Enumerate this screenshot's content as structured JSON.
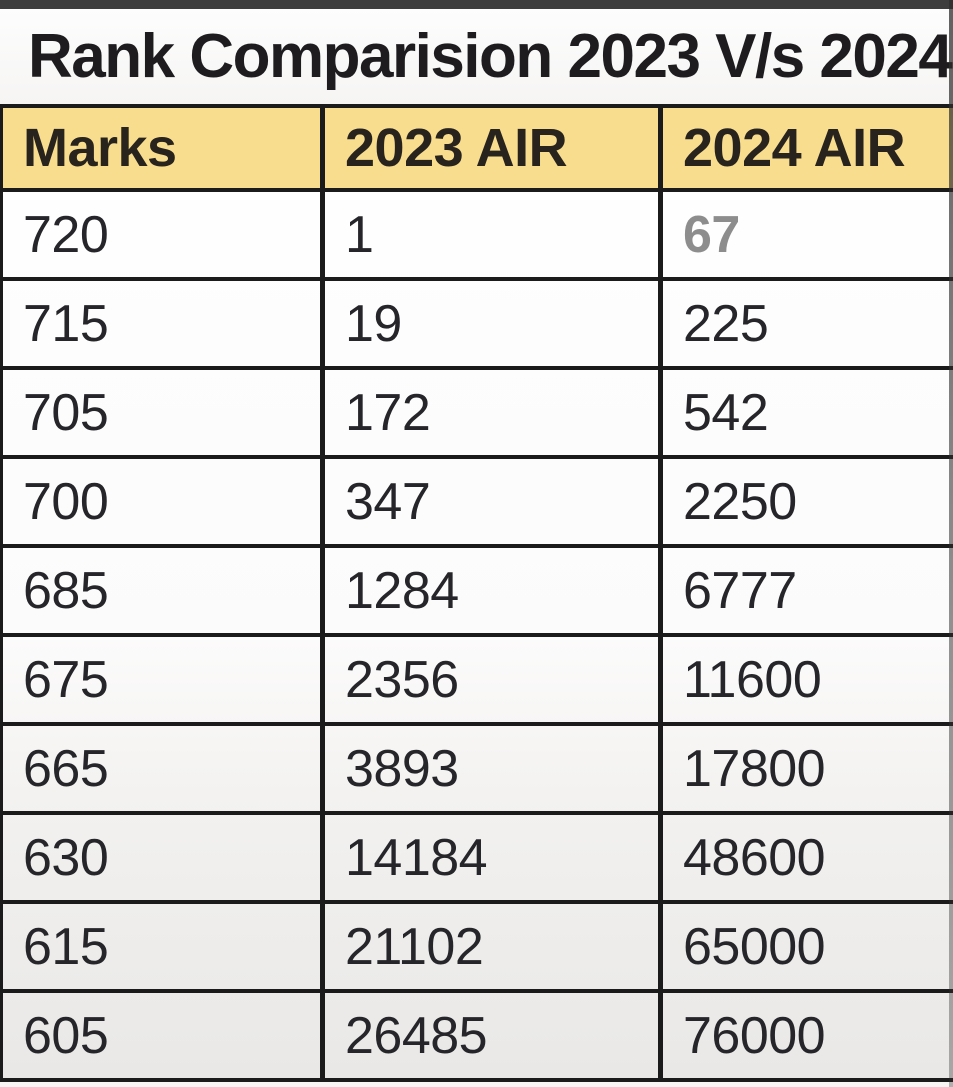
{
  "title": "Rank Comparision 2023 V/s 2024",
  "chart_data": {
    "type": "table",
    "title": "Rank Comparision 2023 V/s 2024",
    "columns": [
      "Marks",
      "2023 AIR",
      "2024 AIR"
    ],
    "rows": [
      [
        720,
        1,
        67
      ],
      [
        715,
        19,
        225
      ],
      [
        705,
        172,
        542
      ],
      [
        700,
        347,
        2250
      ],
      [
        685,
        1284,
        6777
      ],
      [
        675,
        2356,
        11600
      ],
      [
        665,
        3893,
        17800
      ],
      [
        630,
        14184,
        48600
      ],
      [
        615,
        21102,
        65000
      ],
      [
        605,
        26485,
        76000
      ]
    ]
  },
  "table": {
    "headers": [
      "Marks",
      "2023 AIR",
      "2024 AIR"
    ],
    "rows": [
      {
        "marks": "720",
        "air_2023": "1",
        "air_2024": "67",
        "air_2024_muted": true
      },
      {
        "marks": "715",
        "air_2023": "19",
        "air_2024": "225",
        "air_2024_muted": false
      },
      {
        "marks": "705",
        "air_2023": "172",
        "air_2024": "542",
        "air_2024_muted": false
      },
      {
        "marks": "700",
        "air_2023": "347",
        "air_2024": "2250",
        "air_2024_muted": false
      },
      {
        "marks": "685",
        "air_2023": "1284",
        "air_2024": "6777",
        "air_2024_muted": false
      },
      {
        "marks": "675",
        "air_2023": "2356",
        "air_2024": "11600",
        "air_2024_muted": false
      },
      {
        "marks": "665",
        "air_2023": "3893",
        "air_2024": "17800",
        "air_2024_muted": false
      },
      {
        "marks": "630",
        "air_2023": "14184",
        "air_2024": "48600",
        "air_2024_muted": false
      },
      {
        "marks": "615",
        "air_2023": "21102",
        "air_2024": "65000",
        "air_2024_muted": false
      },
      {
        "marks": "605",
        "air_2023": "26485",
        "air_2024": "76000",
        "air_2024_muted": false
      }
    ]
  },
  "colors": {
    "top_bar": "#3d3d3d",
    "header_bg": "#f8dd8e",
    "border": "#1b1b1b",
    "text": "#26262a",
    "muted_value": "#8d8d8d",
    "title_text": "#1e1c1f"
  }
}
